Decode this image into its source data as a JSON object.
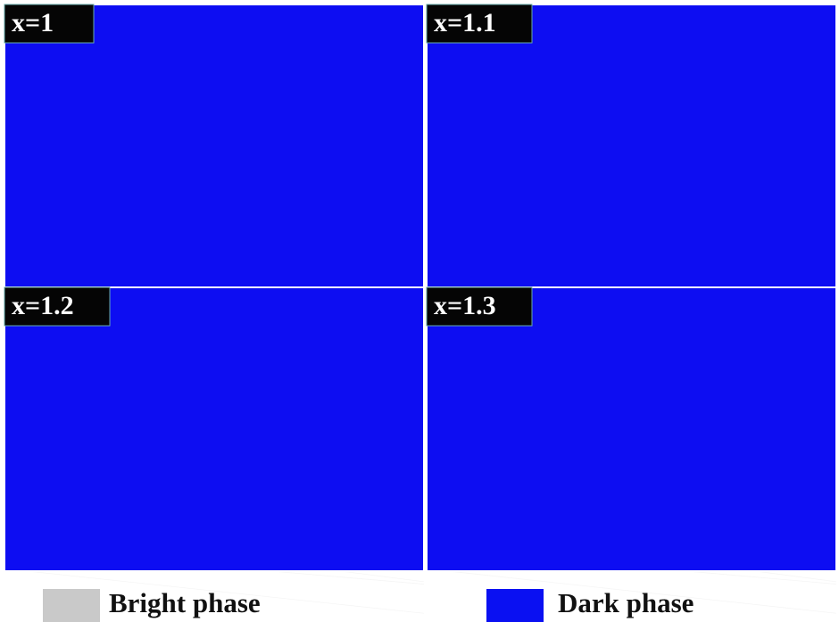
{
  "panels": [
    {
      "label": "x=1"
    },
    {
      "label": "x=1.1"
    },
    {
      "label": "x=1.2"
    },
    {
      "label": "x=1.3"
    }
  ],
  "legend": [
    {
      "label": "Bright phase",
      "color": "#c9c9c9"
    },
    {
      "label": "Dark phase",
      "color": "#0a10f2"
    }
  ]
}
